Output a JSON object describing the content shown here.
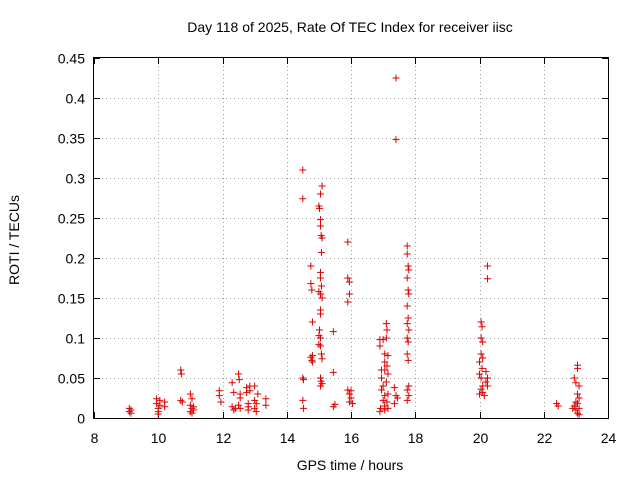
{
  "chart_data": {
    "type": "scatter",
    "title": "Day 118 of 2025, Rate Of TEC Index for receiver iisc",
    "xlabel": "GPS time / hours",
    "ylabel": "ROTI / TECUs",
    "xlim": [
      8,
      24
    ],
    "ylim": [
      0,
      0.45
    ],
    "xticks": [
      "8",
      "10",
      "12",
      "14",
      "16",
      "18",
      "20",
      "22",
      "24"
    ],
    "xtick_values": [
      8,
      10,
      12,
      14,
      16,
      18,
      20,
      22,
      24
    ],
    "yticks": [
      "0",
      "0.05",
      "0.1",
      "0.15",
      "0.2",
      "0.25",
      "0.3",
      "0.35",
      "0.4",
      "0.45"
    ],
    "ytick_values": [
      0,
      0.05,
      0.1,
      0.15,
      0.2,
      0.25,
      0.3,
      0.35,
      0.4,
      0.45
    ],
    "grid": true,
    "marker": "plus",
    "color": "#dd0000",
    "series": [
      {
        "name": "ROTI",
        "points": [
          [
            9.1,
            0.012
          ],
          [
            9.1,
            0.008
          ],
          [
            9.15,
            0.01
          ],
          [
            9.15,
            0.006
          ],
          [
            9.95,
            0.024
          ],
          [
            9.95,
            0.018
          ],
          [
            10.0,
            0.012
          ],
          [
            10.0,
            0.008
          ],
          [
            10.05,
            0.022
          ],
          [
            10.05,
            0.016
          ],
          [
            10.0,
            0.005
          ],
          [
            10.2,
            0.02
          ],
          [
            10.2,
            0.014
          ],
          [
            10.7,
            0.06
          ],
          [
            10.72,
            0.055
          ],
          [
            10.7,
            0.022
          ],
          [
            10.75,
            0.02
          ],
          [
            11.0,
            0.03
          ],
          [
            11.05,
            0.024
          ],
          [
            11.0,
            0.016
          ],
          [
            11.05,
            0.012
          ],
          [
            11.0,
            0.008
          ],
          [
            11.05,
            0.006
          ],
          [
            11.1,
            0.014
          ],
          [
            11.1,
            0.01
          ],
          [
            11.9,
            0.034
          ],
          [
            11.9,
            0.028
          ],
          [
            11.95,
            0.02
          ],
          [
            12.3,
            0.044
          ],
          [
            12.35,
            0.032
          ],
          [
            12.3,
            0.014
          ],
          [
            12.35,
            0.01
          ],
          [
            12.4,
            0.012
          ],
          [
            12.5,
            0.055
          ],
          [
            12.52,
            0.048
          ],
          [
            12.55,
            0.03
          ],
          [
            12.55,
            0.025
          ],
          [
            12.5,
            0.016
          ],
          [
            12.55,
            0.012
          ],
          [
            12.75,
            0.038
          ],
          [
            12.75,
            0.032
          ],
          [
            12.8,
            0.018
          ],
          [
            12.8,
            0.014
          ],
          [
            12.85,
            0.04
          ],
          [
            12.85,
            0.034
          ],
          [
            12.8,
            0.01
          ],
          [
            13.0,
            0.04
          ],
          [
            13.0,
            0.022
          ],
          [
            13.05,
            0.018
          ],
          [
            13.0,
            0.012
          ],
          [
            13.05,
            0.008
          ],
          [
            13.1,
            0.03
          ],
          [
            13.35,
            0.024
          ],
          [
            13.35,
            0.016
          ],
          [
            14.5,
            0.31
          ],
          [
            14.5,
            0.274
          ],
          [
            14.5,
            0.05
          ],
          [
            14.52,
            0.048
          ],
          [
            14.5,
            0.022
          ],
          [
            14.52,
            0.012
          ],
          [
            14.75,
            0.19
          ],
          [
            14.75,
            0.168
          ],
          [
            14.78,
            0.16
          ],
          [
            14.8,
            0.12
          ],
          [
            14.75,
            0.076
          ],
          [
            14.78,
            0.072
          ],
          [
            14.8,
            0.078
          ],
          [
            14.8,
            0.07
          ],
          [
            15.0,
            0.265
          ],
          [
            15.02,
            0.262
          ],
          [
            15.05,
            0.28
          ],
          [
            15.1,
            0.29
          ],
          [
            15.05,
            0.248
          ],
          [
            15.05,
            0.24
          ],
          [
            15.07,
            0.228
          ],
          [
            15.1,
            0.225
          ],
          [
            15.08,
            0.207
          ],
          [
            15.05,
            0.182
          ],
          [
            15.05,
            0.175
          ],
          [
            15.08,
            0.165
          ],
          [
            15.0,
            0.158
          ],
          [
            15.05,
            0.155
          ],
          [
            15.1,
            0.15
          ],
          [
            15.05,
            0.135
          ],
          [
            15.05,
            0.13
          ],
          [
            15.02,
            0.11
          ],
          [
            15.0,
            0.103
          ],
          [
            15.05,
            0.1
          ],
          [
            15.0,
            0.092
          ],
          [
            15.05,
            0.09
          ],
          [
            15.08,
            0.08
          ],
          [
            15.1,
            0.074
          ],
          [
            15.05,
            0.05
          ],
          [
            15.07,
            0.046
          ],
          [
            15.1,
            0.043
          ],
          [
            15.05,
            0.04
          ],
          [
            15.45,
            0.108
          ],
          [
            15.45,
            0.057
          ],
          [
            15.5,
            0.017
          ],
          [
            15.45,
            0.014
          ],
          [
            15.9,
            0.22
          ],
          [
            15.9,
            0.175
          ],
          [
            15.95,
            0.17
          ],
          [
            15.95,
            0.155
          ],
          [
            15.9,
            0.145
          ],
          [
            15.9,
            0.035
          ],
          [
            15.95,
            0.03
          ],
          [
            16.0,
            0.025
          ],
          [
            15.95,
            0.02
          ],
          [
            16.0,
            0.034
          ],
          [
            16.05,
            0.018
          ],
          [
            16.9,
            0.098
          ],
          [
            16.9,
            0.09
          ],
          [
            16.95,
            0.06
          ],
          [
            16.95,
            0.05
          ],
          [
            16.95,
            0.035
          ],
          [
            16.92,
            0.012
          ],
          [
            16.9,
            0.008
          ],
          [
            17.0,
            0.098
          ],
          [
            17.05,
            0.08
          ],
          [
            17.05,
            0.07
          ],
          [
            17.05,
            0.06
          ],
          [
            17.0,
            0.04
          ],
          [
            17.05,
            0.028
          ],
          [
            17.0,
            0.022
          ],
          [
            17.05,
            0.015
          ],
          [
            17.05,
            0.01
          ],
          [
            17.1,
            0.118
          ],
          [
            17.12,
            0.11
          ],
          [
            17.1,
            0.1
          ],
          [
            17.15,
            0.078
          ],
          [
            17.12,
            0.065
          ],
          [
            17.15,
            0.055
          ],
          [
            17.1,
            0.045
          ],
          [
            17.15,
            0.03
          ],
          [
            17.12,
            0.02
          ],
          [
            17.15,
            0.012
          ],
          [
            17.4,
            0.425
          ],
          [
            17.4,
            0.348
          ],
          [
            17.35,
            0.038
          ],
          [
            17.4,
            0.028
          ],
          [
            17.45,
            0.025
          ],
          [
            17.35,
            0.018
          ],
          [
            17.75,
            0.215
          ],
          [
            17.75,
            0.205
          ],
          [
            17.78,
            0.19
          ],
          [
            17.8,
            0.185
          ],
          [
            17.75,
            0.175
          ],
          [
            17.78,
            0.16
          ],
          [
            17.8,
            0.155
          ],
          [
            17.75,
            0.14
          ],
          [
            17.78,
            0.125
          ],
          [
            17.75,
            0.118
          ],
          [
            17.8,
            0.11
          ],
          [
            17.75,
            0.1
          ],
          [
            17.78,
            0.095
          ],
          [
            17.75,
            0.08
          ],
          [
            17.78,
            0.072
          ],
          [
            17.8,
            0.04
          ],
          [
            17.75,
            0.035
          ],
          [
            17.8,
            0.028
          ],
          [
            17.75,
            0.022
          ],
          [
            20.05,
            0.12
          ],
          [
            20.08,
            0.114
          ],
          [
            20.05,
            0.1
          ],
          [
            20.1,
            0.095
          ],
          [
            20.05,
            0.08
          ],
          [
            20.1,
            0.075
          ],
          [
            20.0,
            0.07
          ],
          [
            20.08,
            0.062
          ],
          [
            20.0,
            0.055
          ],
          [
            20.05,
            0.05
          ],
          [
            20.1,
            0.04
          ],
          [
            20.05,
            0.036
          ],
          [
            20.1,
            0.032
          ],
          [
            20.0,
            0.03
          ],
          [
            20.15,
            0.028
          ],
          [
            20.2,
            0.058
          ],
          [
            20.25,
            0.05
          ],
          [
            20.2,
            0.045
          ],
          [
            20.25,
            0.04
          ],
          [
            20.25,
            0.19
          ],
          [
            20.25,
            0.174
          ],
          [
            22.4,
            0.018
          ],
          [
            22.45,
            0.015
          ],
          [
            22.95,
            0.05
          ],
          [
            23.0,
            0.044
          ],
          [
            22.95,
            0.015
          ],
          [
            22.9,
            0.012
          ],
          [
            23.0,
            0.02
          ],
          [
            23.0,
            0.01
          ],
          [
            23.05,
            0.066
          ],
          [
            23.05,
            0.062
          ],
          [
            23.1,
            0.04
          ],
          [
            23.05,
            0.03
          ],
          [
            23.1,
            0.025
          ],
          [
            23.05,
            0.018
          ],
          [
            23.1,
            0.012
          ],
          [
            23.05,
            0.006
          ],
          [
            23.1,
            0.004
          ]
        ]
      }
    ]
  }
}
